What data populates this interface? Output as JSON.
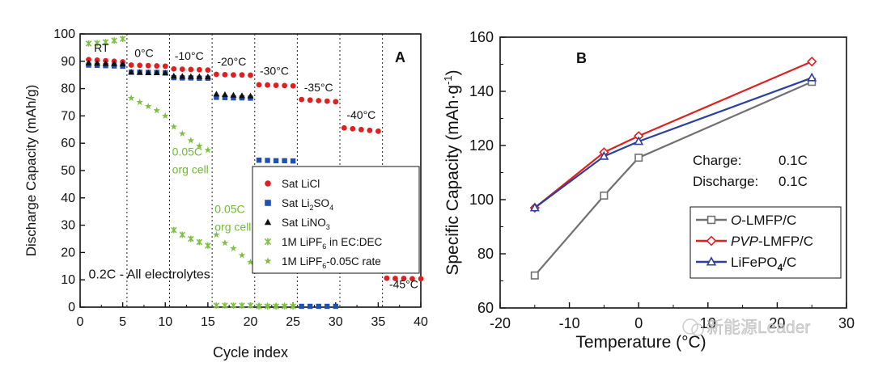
{
  "chart_data": [
    {
      "panel": "A",
      "type": "scatter",
      "xlabel": "Cycle index",
      "ylabel": "Discharge Capacity (mAh/g)",
      "xlim": [
        0,
        40
      ],
      "ylim": [
        0,
        100
      ],
      "xticks": [
        0,
        5,
        10,
        15,
        20,
        25,
        30,
        35,
        40
      ],
      "yticks": [
        0,
        10,
        20,
        30,
        40,
        50,
        60,
        70,
        80,
        90,
        100
      ],
      "grid": false,
      "segment_boundaries": [
        5.5,
        10.5,
        15.5,
        20.5,
        25.5,
        30.5,
        35.5
      ],
      "temperature_labels": [
        {
          "text": "RT",
          "x": 2.5,
          "y": 93.5
        },
        {
          "text": "0°C",
          "x": 7.5,
          "y": 91.5
        },
        {
          "text": "-10°C",
          "x": 12.8,
          "y": 90.5
        },
        {
          "text": "-20°C",
          "x": 17.8,
          "y": 88.5
        },
        {
          "text": "-30°C",
          "x": 22.8,
          "y": 85
        },
        {
          "text": "-35°C",
          "x": 28,
          "y": 79
        },
        {
          "text": "-40°C",
          "x": 33,
          "y": 69
        },
        {
          "text": "-45°C",
          "x": 38,
          "y": 7
        }
      ],
      "annotations": [
        {
          "text": "0.2C - All electrolytes",
          "x": 1,
          "y": 10.5
        },
        {
          "text": "0.05C",
          "x": 10.8,
          "y": 55.5
        },
        {
          "text": "org cell",
          "x": 10.8,
          "y": 49
        },
        {
          "text": "0.05C",
          "x": 15.8,
          "y": 34.5
        },
        {
          "text": "org cell",
          "x": 15.8,
          "y": 28
        }
      ],
      "panel_label": "A",
      "legend": {
        "position": "center-right",
        "entries": [
          {
            "label": "Sat LiCl",
            "marker": "circle",
            "color": "#e02020"
          },
          {
            "label": "Sat Li",
            "sub": "2",
            "label_rest": "SO",
            "sub2": "4",
            "marker": "square",
            "color": "#2050b0"
          },
          {
            "label": "Sat LiNO",
            "sub": "3",
            "marker": "triangle",
            "color": "#111111"
          },
          {
            "label": "1M LiPF",
            "sub": "6",
            "label_rest": " in EC:DEC",
            "marker": "x",
            "color": "#7cc040"
          },
          {
            "label": "1M LiPF",
            "sub": "6",
            "label_rest": "-0.05C rate",
            "marker": "star",
            "color": "#7cc040"
          }
        ]
      },
      "series": [
        {
          "name": "Sat LiCl",
          "marker": "circle",
          "color": "#e02020",
          "points": [
            [
              1,
              90.6
            ],
            [
              2,
              90.4
            ],
            [
              3,
              90.2
            ],
            [
              4,
              90.0
            ],
            [
              5,
              89.8
            ],
            [
              6,
              88.6
            ],
            [
              7,
              88.5
            ],
            [
              8,
              88.4
            ],
            [
              9,
              88.3
            ],
            [
              10,
              88.2
            ],
            [
              11,
              87.2
            ],
            [
              12,
              87.1
            ],
            [
              13,
              87.0
            ],
            [
              14,
              86.9
            ],
            [
              15,
              86.8
            ],
            [
              16,
              85.2
            ],
            [
              17,
              85.1
            ],
            [
              18,
              85.0
            ],
            [
              19,
              85.0
            ],
            [
              20,
              84.9
            ],
            [
              21,
              81.4
            ],
            [
              22,
              81.3
            ],
            [
              23,
              81.2
            ],
            [
              24,
              81.1
            ],
            [
              25,
              81.0
            ],
            [
              26,
              76.0
            ],
            [
              27,
              75.8
            ],
            [
              28,
              75.6
            ],
            [
              29,
              75.4
            ],
            [
              30,
              75.2
            ],
            [
              31,
              65.6
            ],
            [
              32,
              65.3
            ],
            [
              33,
              65.0
            ],
            [
              34,
              64.7
            ],
            [
              35,
              64.4
            ],
            [
              36,
              10.6
            ],
            [
              37,
              10.5
            ],
            [
              38,
              10.5
            ],
            [
              39,
              10.4
            ],
            [
              40,
              10.4
            ]
          ]
        },
        {
          "name": "Sat Li2SO4",
          "marker": "square",
          "color": "#2050b0",
          "points": [
            [
              1,
              88.6
            ],
            [
              2,
              88.5
            ],
            [
              3,
              88.4
            ],
            [
              4,
              88.3
            ],
            [
              5,
              88.2
            ],
            [
              6,
              86.0
            ],
            [
              7,
              86.0
            ],
            [
              8,
              85.9
            ],
            [
              9,
              85.9
            ],
            [
              10,
              85.8
            ],
            [
              11,
              84.0
            ],
            [
              12,
              83.9
            ],
            [
              13,
              83.9
            ],
            [
              14,
              83.8
            ],
            [
              15,
              83.8
            ],
            [
              16,
              76.8
            ],
            [
              17,
              76.7
            ],
            [
              18,
              76.6
            ],
            [
              19,
              76.6
            ],
            [
              20,
              76.5
            ],
            [
              21,
              53.8
            ],
            [
              22,
              53.7
            ],
            [
              23,
              53.6
            ],
            [
              24,
              53.6
            ],
            [
              25,
              53.5
            ],
            [
              26,
              0.3
            ],
            [
              27,
              0.3
            ],
            [
              28,
              0.3
            ],
            [
              29,
              0.3
            ],
            [
              30,
              0.3
            ]
          ]
        },
        {
          "name": "Sat LiNO3",
          "marker": "triangle",
          "color": "#111111",
          "points": [
            [
              1,
              89.4
            ],
            [
              2,
              89.3
            ],
            [
              3,
              89.2
            ],
            [
              4,
              89.1
            ],
            [
              5,
              89.0
            ],
            [
              6,
              86.0
            ],
            [
              7,
              85.9
            ],
            [
              8,
              85.8
            ],
            [
              9,
              85.8
            ],
            [
              10,
              85.7
            ],
            [
              11,
              84.6
            ],
            [
              12,
              84.5
            ],
            [
              13,
              84.4
            ],
            [
              14,
              84.4
            ],
            [
              15,
              84.3
            ],
            [
              16,
              78.0
            ],
            [
              17,
              77.8
            ],
            [
              18,
              77.6
            ],
            [
              19,
              77.4
            ],
            [
              20,
              77.3
            ]
          ]
        },
        {
          "name": "1M LiPF6 in EC:DEC",
          "marker": "x",
          "color": "#7cc040",
          "points": [
            [
              1,
              96.5
            ],
            [
              2,
              96.6
            ],
            [
              3,
              97.0
            ],
            [
              4,
              97.6
            ],
            [
              5,
              98.2
            ],
            [
              11,
              28.2
            ],
            [
              12,
              26.5
            ],
            [
              13,
              25.0
            ],
            [
              14,
              23.8
            ],
            [
              15,
              22.5
            ],
            [
              16,
              0.6
            ],
            [
              17,
              0.6
            ],
            [
              18,
              0.6
            ],
            [
              19,
              0.6
            ],
            [
              20,
              0.6
            ],
            [
              21,
              0.3
            ],
            [
              22,
              0.3
            ],
            [
              23,
              0.3
            ],
            [
              24,
              0.3
            ],
            [
              25,
              0.3
            ]
          ]
        },
        {
          "name": "1M LiPF6-0.05C rate",
          "marker": "star",
          "color": "#7cc040",
          "points": [
            [
              6,
              76.5
            ],
            [
              7,
              75.0
            ],
            [
              8,
              73.5
            ],
            [
              9,
              72.0
            ],
            [
              10,
              70.0
            ],
            [
              11,
              66.0
            ],
            [
              12,
              63.5
            ],
            [
              13,
              61.0
            ],
            [
              14,
              59.0
            ],
            [
              15,
              57.5
            ],
            [
              16,
              26.5
            ],
            [
              17,
              23.5
            ],
            [
              18,
              21.5
            ],
            [
              19,
              19.0
            ],
            [
              20,
              16.5
            ],
            [
              21,
              0.6
            ],
            [
              22,
              0.6
            ],
            [
              23,
              0.6
            ],
            [
              24,
              0.6
            ],
            [
              25,
              0.6
            ]
          ]
        }
      ]
    },
    {
      "panel": "B",
      "type": "line",
      "xlabel": "Temperature (°C)",
      "ylabel": "Specific Capacity (mAh·g",
      "ylabel_sup": "-1",
      "ylabel_end": ")",
      "xlim": [
        -20,
        30
      ],
      "ylim": [
        60,
        160
      ],
      "xticks": [
        -20,
        -10,
        0,
        10,
        20,
        30
      ],
      "yticks": [
        60,
        80,
        100,
        120,
        140,
        160
      ],
      "grid": false,
      "panel_label": "B",
      "conditions": [
        {
          "label": "Charge:",
          "value": "0.1C"
        },
        {
          "label": "Discharge:",
          "value": "0.1C"
        }
      ],
      "watermark": "新能源Leader",
      "legend": {
        "position": "lower-right",
        "entries": [
          {
            "label_italic": "O",
            "label": "-LMFP/C",
            "marker": "square",
            "color": "#707070"
          },
          {
            "label_italic": "PVP",
            "label": "-LMFP/C",
            "marker": "diamond",
            "color": "#e02020"
          },
          {
            "label": "LiFePO",
            "sub": "4",
            "label_rest": "/C",
            "marker": "triangle",
            "color": "#2a40a0"
          }
        ]
      },
      "series": [
        {
          "name": "O-LMFP/C",
          "marker": "square",
          "color": "#707070",
          "x": [
            -15,
            -5,
            0,
            25
          ],
          "values": [
            72,
            101.5,
            115.5,
            143.5
          ]
        },
        {
          "name": "PVP-LMFP/C",
          "marker": "diamond",
          "color": "#e02020",
          "x": [
            -15,
            -5,
            0,
            25
          ],
          "values": [
            97,
            117.5,
            123.5,
            151
          ]
        },
        {
          "name": "LiFePO4/C",
          "marker": "triangle",
          "color": "#2a40a0",
          "x": [
            -15,
            -5,
            0,
            25
          ],
          "values": [
            97,
            116,
            121.5,
            145
          ]
        }
      ]
    }
  ]
}
